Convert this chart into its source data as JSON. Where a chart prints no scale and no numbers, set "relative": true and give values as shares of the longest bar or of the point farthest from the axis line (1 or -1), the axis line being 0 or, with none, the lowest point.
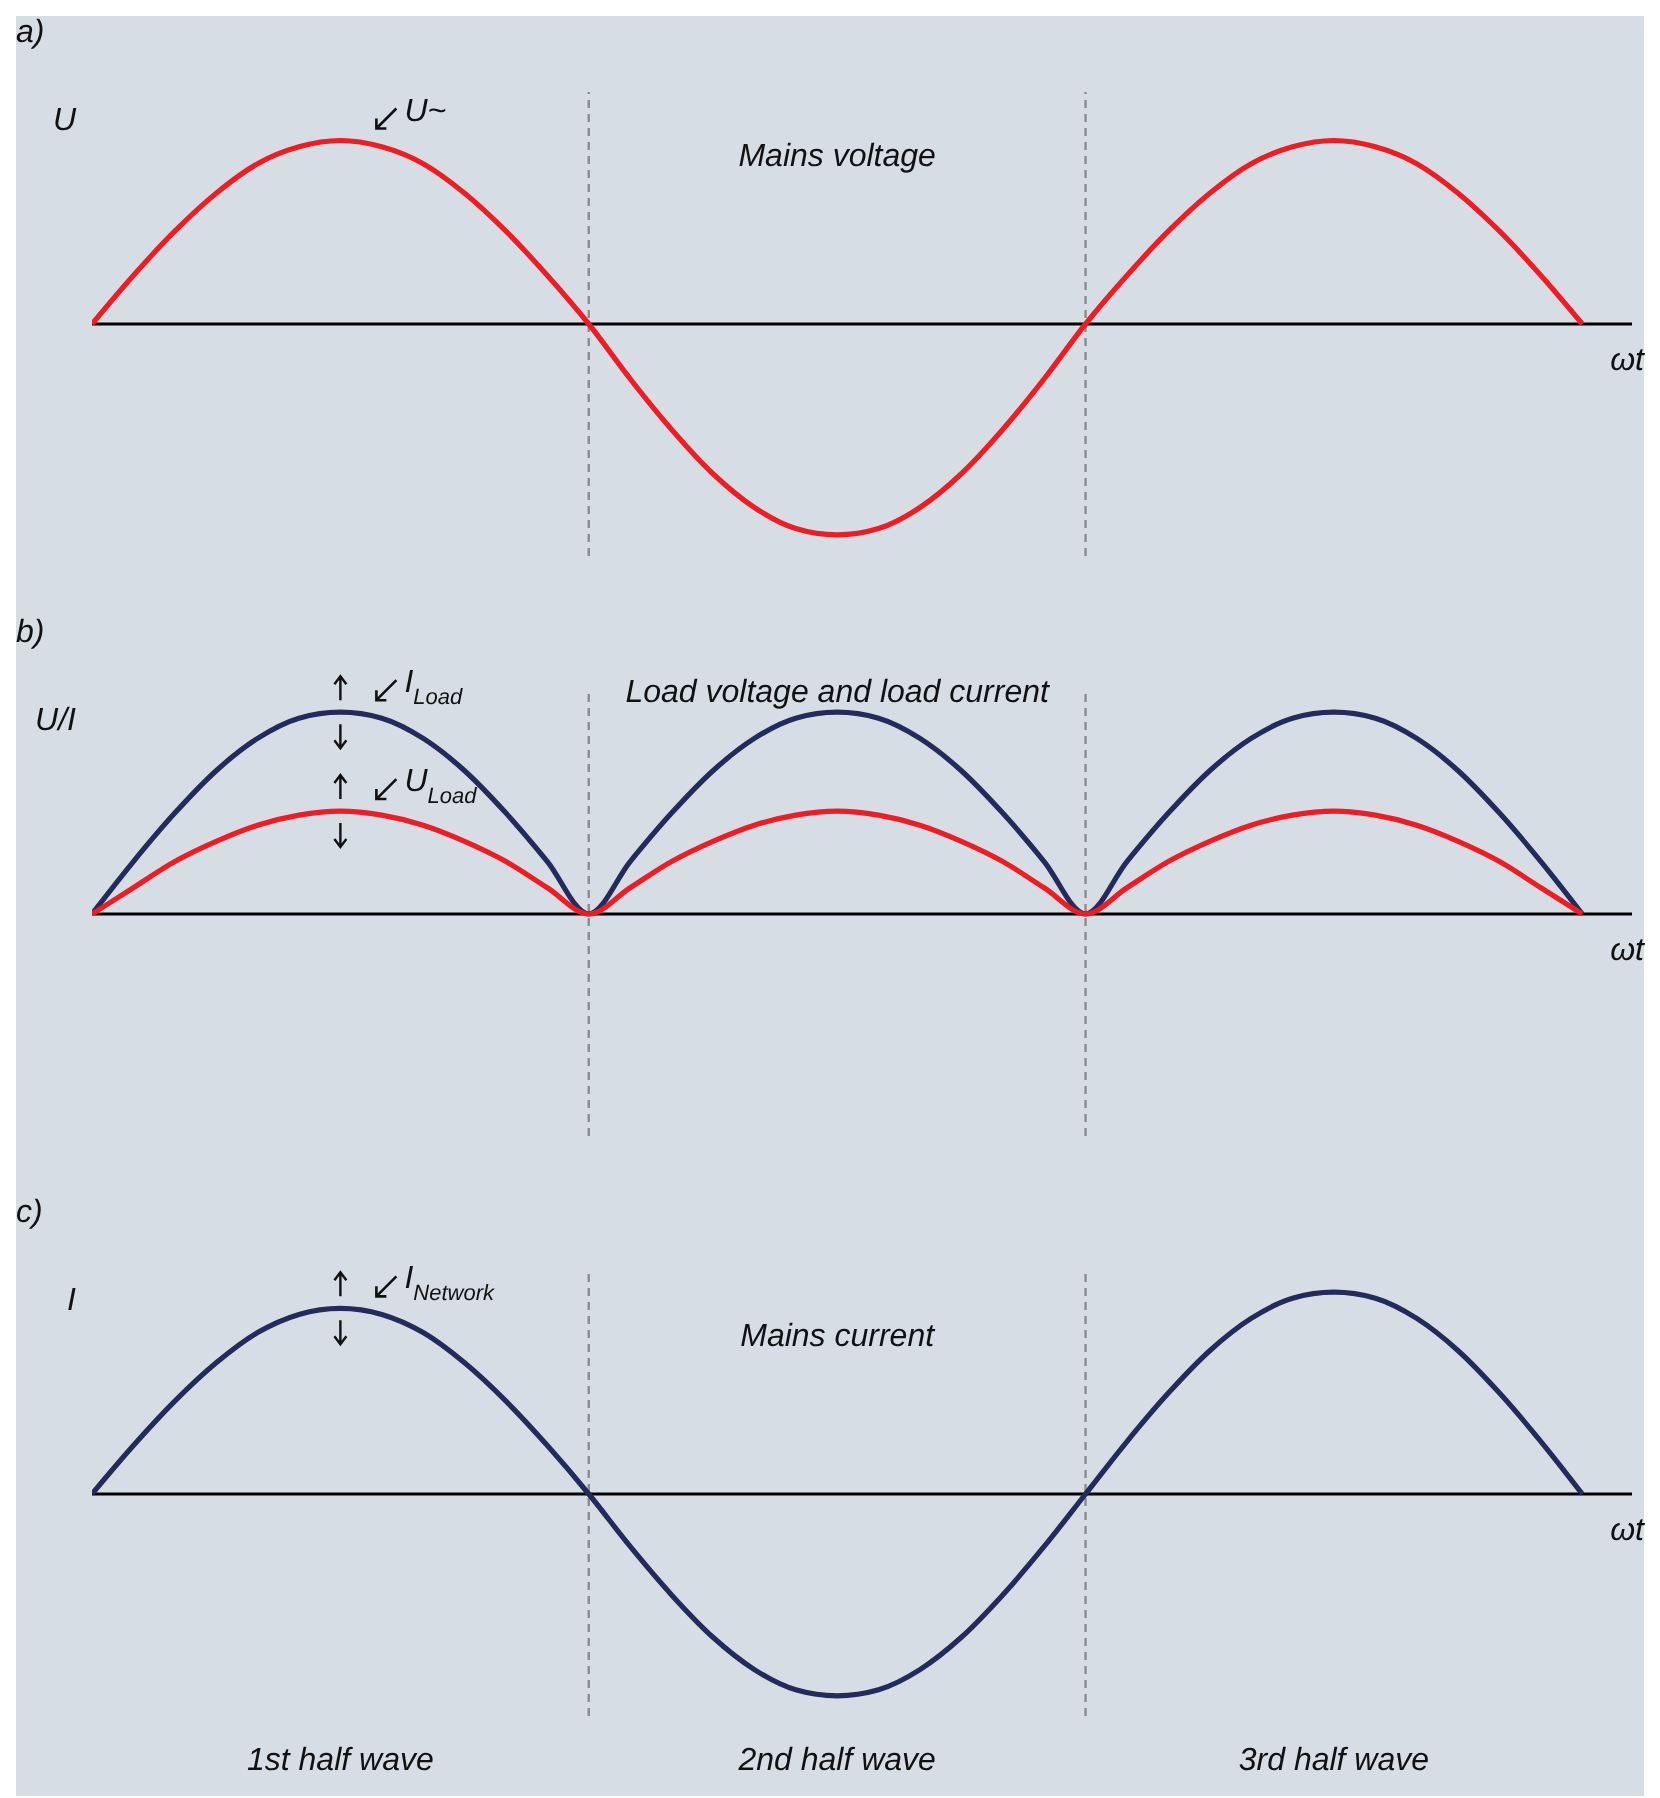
{
  "chart_data": [
    {
      "type": "line",
      "title": "Mains voltage",
      "ylabel": "U",
      "xlabel": "ωt",
      "relative": true,
      "marker": "none",
      "annotations": [
        "a)"
      ],
      "categories": [
        null,
        null,
        null,
        null,
        null,
        null,
        null,
        null,
        null,
        null,
        null,
        null,
        null,
        null,
        null,
        null,
        null,
        null,
        null,
        null,
        null,
        null,
        null,
        null,
        null,
        null,
        null,
        null,
        null,
        null,
        null,
        null,
        null,
        null,
        null,
        null,
        null
      ],
      "series": [
        {
          "name": "U~",
          "color": "#ee1d23",
          "values": [
            0,
            0.23,
            0.44,
            0.62,
            0.76,
            0.84,
            0.87,
            0.84,
            0.76,
            0.62,
            0.44,
            0.23,
            0,
            -0.26,
            -0.5,
            -0.71,
            -0.87,
            -0.97,
            -1,
            -0.97,
            -0.87,
            -0.71,
            -0.5,
            -0.26,
            0,
            0.23,
            0.44,
            0.62,
            0.76,
            0.84,
            0.87,
            0.84,
            0.76,
            0.62,
            0.44,
            0.23,
            0
          ]
        }
      ]
    },
    {
      "type": "line",
      "title": "Load voltage and load current",
      "ylabel": "U/I",
      "xlabel": "ωt",
      "relative": true,
      "marker": "none",
      "annotations": [
        "b)"
      ],
      "categories": [
        null,
        null,
        null,
        null,
        null,
        null,
        null,
        null,
        null,
        null,
        null,
        null,
        null,
        null,
        null,
        null,
        null,
        null,
        null,
        null,
        null,
        null,
        null,
        null,
        null,
        null,
        null,
        null,
        null,
        null,
        null,
        null,
        null,
        null,
        null,
        null,
        null
      ],
      "series": [
        {
          "name": "I$_{Load}$",
          "color": "#232a5c",
          "values": [
            0,
            0.26,
            0.5,
            0.71,
            0.87,
            0.97,
            1,
            0.97,
            0.87,
            0.71,
            0.5,
            0.26,
            0,
            0.26,
            0.5,
            0.71,
            0.87,
            0.97,
            1,
            0.97,
            0.87,
            0.71,
            0.5,
            0.26,
            0,
            0.26,
            0.5,
            0.71,
            0.87,
            0.97,
            1,
            0.97,
            0.87,
            0.71,
            0.5,
            0.26,
            0
          ]
        },
        {
          "name": "U$_{Load}$",
          "color": "#ee1d23",
          "values": [
            0,
            0.13,
            0.26,
            0.36,
            0.44,
            0.49,
            0.51,
            0.49,
            0.44,
            0.36,
            0.26,
            0.13,
            0,
            0.13,
            0.26,
            0.36,
            0.44,
            0.49,
            0.51,
            0.49,
            0.44,
            0.36,
            0.26,
            0.13,
            0,
            0.13,
            0.26,
            0.36,
            0.44,
            0.49,
            0.51,
            0.49,
            0.44,
            0.36,
            0.26,
            0.13,
            0
          ]
        }
      ]
    },
    {
      "type": "line",
      "title": "Mains current",
      "ylabel": "I",
      "xlabel": "ωt",
      "relative": true,
      "marker": "none",
      "annotations": [
        "c)",
        "1st half wave",
        "2nd half wave",
        "3rd half wave"
      ],
      "categories": [
        null,
        null,
        null,
        null,
        null,
        null,
        null,
        null,
        null,
        null,
        null,
        null,
        null,
        null,
        null,
        null,
        null,
        null,
        null,
        null,
        null,
        null,
        null,
        null,
        null,
        null,
        null,
        null,
        null,
        null,
        null,
        null,
        null,
        null,
        null,
        null,
        null
      ],
      "series": [
        {
          "name": "I$_{Network}$",
          "color": "#232a5c",
          "values": [
            0,
            0.24,
            0.46,
            0.65,
            0.8,
            0.89,
            0.92,
            0.89,
            0.8,
            0.65,
            0.46,
            0.24,
            0,
            -0.26,
            -0.5,
            -0.71,
            -0.87,
            -0.97,
            -1,
            -0.97,
            -0.87,
            -0.71,
            -0.5,
            -0.26,
            0,
            0.26,
            0.5,
            0.71,
            0.87,
            0.97,
            1,
            0.97,
            0.87,
            0.71,
            0.5,
            0.26,
            0
          ]
        }
      ]
    }
  ]
}
